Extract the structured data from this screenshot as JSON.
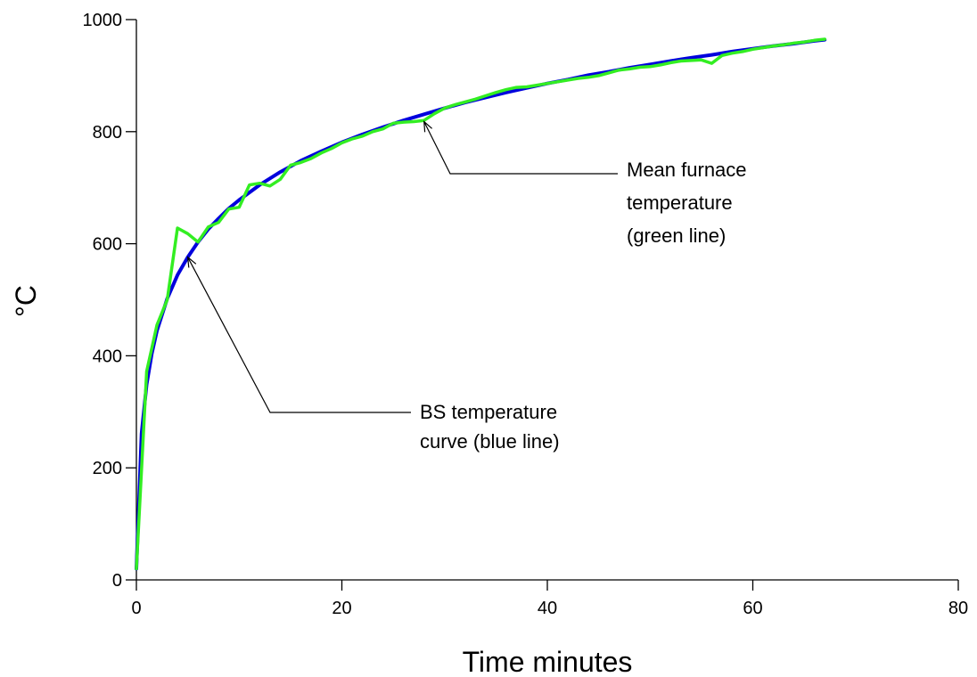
{
  "chart_data": {
    "type": "line",
    "title": "",
    "xlabel": "Time minutes",
    "ylabel": "°C",
    "xlim": [
      0,
      80
    ],
    "ylim": [
      0,
      1000
    ],
    "xticks": [
      "0",
      "20",
      "40",
      "60",
      "80"
    ],
    "yticks": [
      "0",
      "200",
      "400",
      "600",
      "800",
      "1000"
    ],
    "grid": false,
    "series": [
      {
        "color": "#0000dd",
        "x": [
          0,
          0.5,
          1,
          1.5,
          2,
          3,
          4,
          5,
          6,
          7,
          8,
          9,
          10,
          12,
          14,
          16,
          18,
          20,
          22,
          24,
          26,
          28,
          30,
          32,
          34,
          36,
          38,
          40,
          42,
          44,
          46,
          48,
          50,
          52,
          54,
          56,
          58,
          60,
          62,
          64,
          66,
          67
        ],
        "y": [
          20,
          261,
          349,
          404,
          445,
          502,
          544,
          576,
          603,
          626,
          645,
          663,
          678,
          705,
          728,
          748,
          765,
          781,
          795,
          808,
          820,
          831,
          842,
          852,
          861,
          870,
          878,
          886,
          893,
          901,
          907,
          914,
          920,
          926,
          932,
          937,
          943,
          948,
          953,
          957,
          962,
          964
        ]
      },
      {
        "color": "#33ee22",
        "x": [
          0,
          1,
          2,
          3,
          4,
          5,
          6,
          7,
          8,
          9,
          10,
          11,
          12,
          13,
          14,
          15,
          16,
          17,
          18,
          19,
          20,
          21,
          22,
          23,
          24,
          25,
          26,
          27,
          28,
          29,
          30,
          31,
          32,
          33,
          34,
          35,
          36,
          37,
          38,
          39,
          40,
          41,
          42,
          43,
          44,
          45,
          46,
          47,
          48,
          49,
          50,
          51,
          52,
          53,
          54,
          55,
          56,
          57,
          58,
          59,
          60,
          61,
          62,
          63,
          64,
          65,
          66,
          67
        ],
        "y": [
          20,
          372,
          455,
          500,
          628,
          618,
          603,
          630,
          638,
          662,
          665,
          705,
          708,
          703,
          715,
          740,
          745,
          752,
          762,
          770,
          780,
          787,
          792,
          800,
          805,
          815,
          817,
          818,
          820,
          832,
          842,
          848,
          853,
          858,
          864,
          870,
          875,
          879,
          880,
          883,
          886,
          889,
          892,
          895,
          897,
          900,
          905,
          910,
          912,
          915,
          916,
          919,
          923,
          926,
          927,
          928,
          922,
          936,
          940,
          943,
          947,
          950,
          953,
          955,
          958,
          960,
          963,
          965
        ]
      }
    ],
    "annotations": [
      {
        "lines": [
          "Mean furnace",
          "temperature",
          "(green line)"
        ],
        "target": [
          28,
          818
        ]
      },
      {
        "lines": [
          "BS temperature",
          "curve (blue line)"
        ],
        "target": [
          5,
          576
        ]
      }
    ]
  }
}
